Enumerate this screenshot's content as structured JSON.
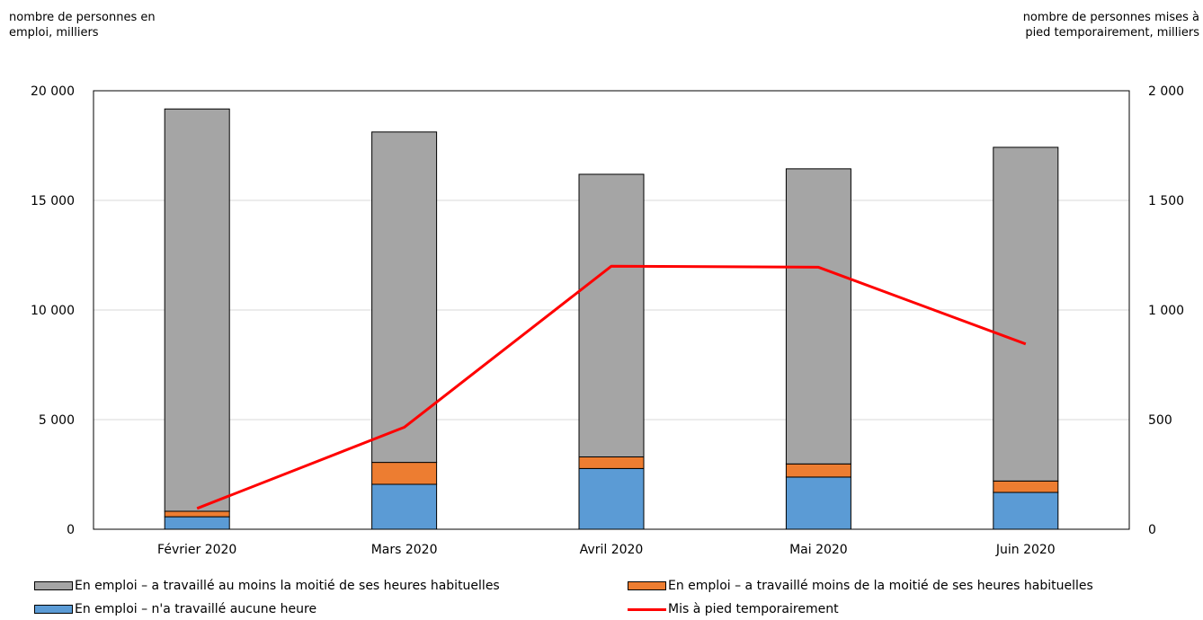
{
  "chart_data": {
    "type": "bar",
    "stacked": true,
    "categories": [
      "Février 2020",
      "Mars 2020",
      "Avril 2020",
      "Mai 2020",
      "Juin 2020"
    ],
    "series": [
      {
        "name": "En emploi – n'a travaillé aucune heure",
        "values": [
          570,
          2050,
          2770,
          2380,
          1680
        ],
        "color": "#5b9bd5",
        "axis": "left"
      },
      {
        "name": "En emploi – a travaillé moins de la moitié de ses heures habituelles",
        "values": [
          250,
          1000,
          530,
          600,
          520
        ],
        "color": "#ed7d31",
        "axis": "left"
      },
      {
        "name": "En emploi – a travaillé au moins la moitié de ses heures habituelles",
        "values": [
          18350,
          15070,
          12890,
          13460,
          15220
        ],
        "color": "#a5a5a5",
        "axis": "left"
      },
      {
        "name": "Mis à pied temporairement",
        "type": "line",
        "values": [
          95,
          465,
          1200,
          1195,
          845
        ],
        "color": "#ff0000",
        "axis": "right"
      }
    ],
    "ylabel": "nombre de personnes en emploi, milliers",
    "ylabel_lines": [
      "nombre de personnes en",
      "emploi, milliers"
    ],
    "y2label": "nombre de personnes mises à pied temporairement, milliers",
    "y2label_lines": [
      "nombre de personnes mises à",
      "pied temporairement, milliers"
    ],
    "ylim": [
      0,
      20000
    ],
    "y2lim": [
      0,
      2000
    ],
    "yticks": [
      0,
      5000,
      10000,
      15000,
      20000
    ],
    "yticklabels": [
      "0",
      "5 000",
      "10 000",
      "15 000",
      "20 000"
    ],
    "y2ticks": [
      0,
      500,
      1000,
      1500,
      2000
    ],
    "y2ticklabels": [
      "0",
      "500",
      "1 000",
      "1 500",
      "2 000"
    ],
    "grid": true,
    "legend_position": "bottom"
  }
}
